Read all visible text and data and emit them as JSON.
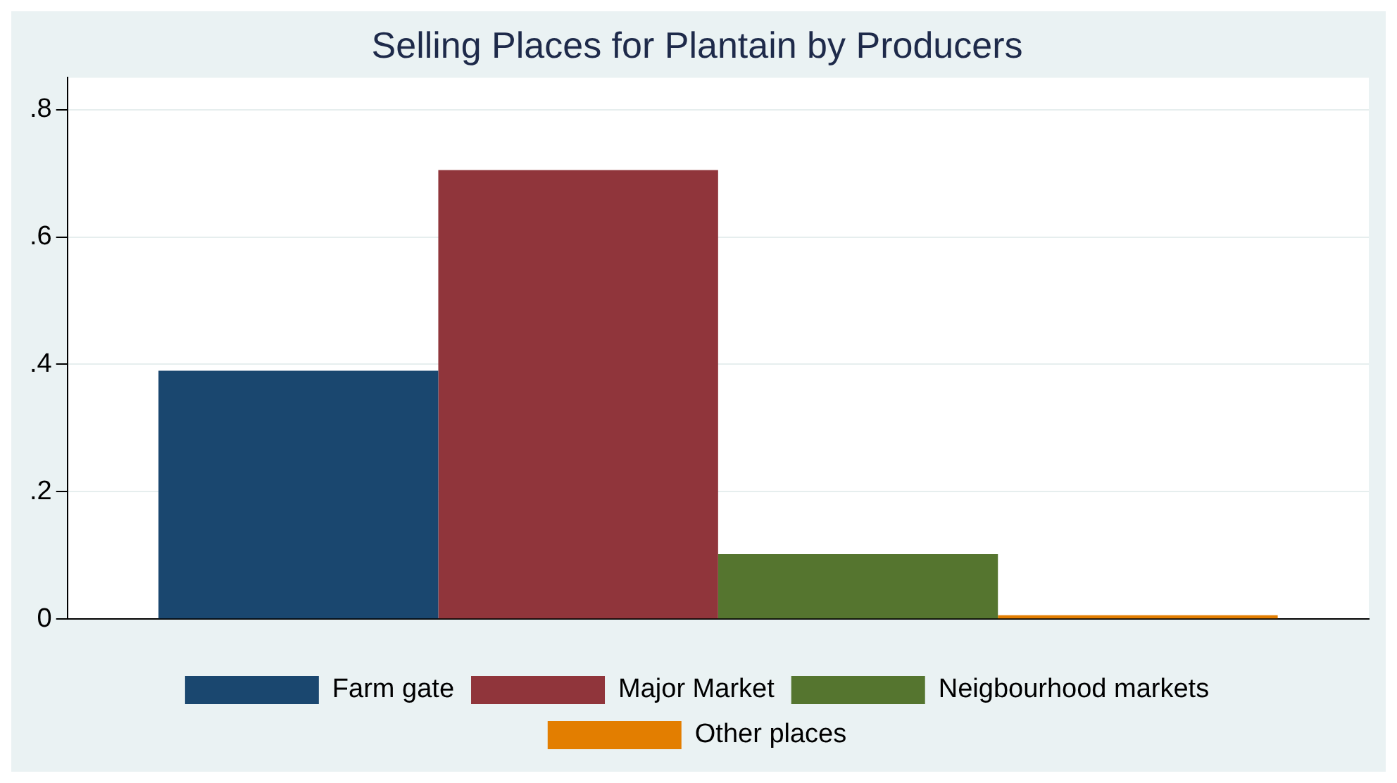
{
  "chart_data": {
    "type": "bar",
    "title": "Selling Places for Plantain by Producers",
    "categories": [
      null
    ],
    "series": [
      {
        "name": "Farm gate",
        "color": "#1a476f",
        "values": [
          0.39
        ]
      },
      {
        "name": "Major Market",
        "color": "#90353b",
        "values": [
          0.705
        ]
      },
      {
        "name": "Neigbourhood markets",
        "color": "#55752f",
        "values": [
          0.102
        ]
      },
      {
        "name": "Other places",
        "color": "#e37e00",
        "values": [
          0.006
        ]
      }
    ],
    "ylim": [
      0,
      0.85
    ],
    "yticks": [
      0,
      {
        "value": 0.2,
        "label": ".2"
      },
      {
        "value": 0.4,
        "label": ".4"
      },
      {
        "value": 0.6,
        "label": ".6"
      },
      {
        "value": 0.8,
        "label": ".8"
      }
    ],
    "grid": "y",
    "legend": "bottom"
  }
}
